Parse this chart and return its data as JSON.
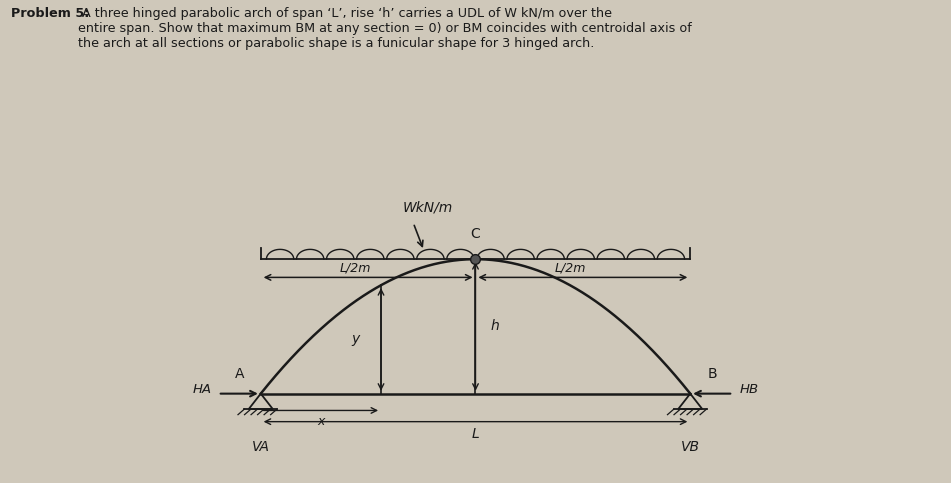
{
  "title_bold": "Problem 5:",
  "title_rest": " A three hinged parabolic arch of span ‘L’, rise ‘h’ carries a UDL of W kN/m over the\nentire span. Show that maximum BM at any section = 0) or BM coincides with centroidal axis of\nthe arch at all sections or parabolic shape is a funicular shape for 3 hinged arch.",
  "bg_color": "#cfc8ba",
  "arch_color": "#1a1a1a",
  "text_color": "#1a1a1a",
  "udl_label": "WkN/m",
  "label_C": "C",
  "label_A": "A",
  "label_B": "B",
  "label_HA": "HA",
  "label_HB": "HB",
  "label_VA": "VA",
  "label_VB": "VB",
  "label_y": "y",
  "label_h": "h",
  "label_L": "L",
  "label_x": "x",
  "label_L2m_left": "L/2m",
  "label_L2m_right": "L/2m"
}
